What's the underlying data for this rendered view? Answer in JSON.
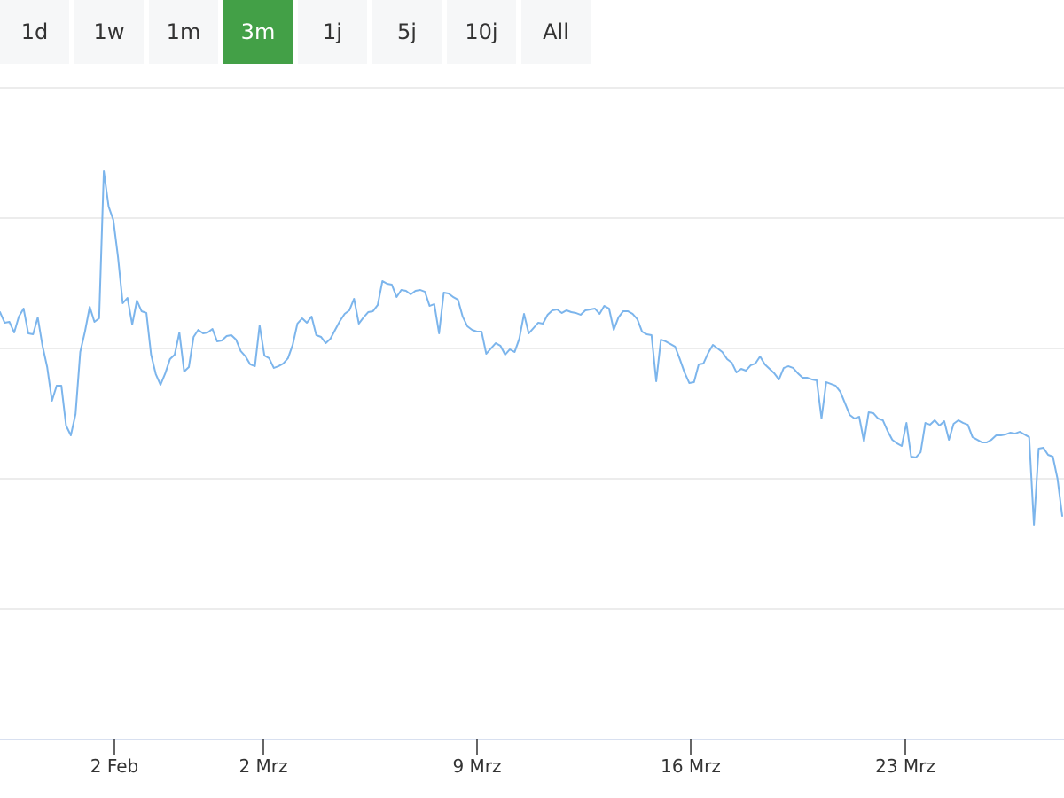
{
  "range_selector": {
    "selected": "3m",
    "items": [
      {
        "label": "1d",
        "active": false
      },
      {
        "label": "1w",
        "active": false
      },
      {
        "label": "1m",
        "active": false
      },
      {
        "label": "3m",
        "active": true
      },
      {
        "label": "1j",
        "active": false
      },
      {
        "label": "5j",
        "active": false
      },
      {
        "label": "10j",
        "active": false
      },
      {
        "label": "All",
        "active": false
      }
    ]
  },
  "colors": {
    "selected_button": "#43a047",
    "button_bg": "#f6f7f8",
    "series_line": "#7cb5ec",
    "grid": "#e6e6e6",
    "axis": "#ccd6eb"
  },
  "chart_data": {
    "type": "line",
    "title": "",
    "xlabel": "",
    "ylabel": "",
    "grid": true,
    "y_tick_labels_visible": false,
    "y_gridline_count": 5,
    "x_ticks": [
      "2 Feb",
      "2 Mrz",
      "9 Mrz",
      "16 Mrz",
      "23 Mrz"
    ],
    "series": [
      {
        "values": [
          352,
          364,
          363,
          375,
          357,
          348,
          376,
          377,
          358,
          390,
          414,
          452,
          435,
          435,
          480,
          491,
          467,
          397,
          374,
          346,
          363,
          359,
          193,
          233,
          248,
          290,
          342,
          336,
          366,
          339,
          351,
          353,
          400,
          422,
          434,
          421,
          405,
          400,
          375,
          419,
          414,
          380,
          372,
          376,
          375,
          371,
          385,
          384,
          379,
          378,
          383,
          396,
          402,
          411,
          413,
          367,
          401,
          404,
          415,
          413,
          410,
          404,
          389,
          365,
          359,
          364,
          357,
          378,
          380,
          387,
          382,
          372,
          362,
          354,
          350,
          337,
          365,
          358,
          352,
          351,
          344,
          317,
          320,
          321,
          335,
          327,
          328,
          332,
          328,
          327,
          329,
          345,
          343,
          376,
          330,
          331,
          335,
          338,
          357,
          368,
          372,
          374,
          374,
          399,
          393,
          387,
          390,
          400,
          394,
          397,
          382,
          354,
          376,
          370,
          364,
          365,
          355,
          350,
          349,
          353,
          350,
          352,
          353,
          355,
          350,
          349,
          348,
          354,
          345,
          348,
          372,
          358,
          351,
          351,
          354,
          360,
          374,
          377,
          378,
          430,
          383,
          385,
          388,
          391,
          405,
          420,
          432,
          431,
          411,
          410,
          398,
          389,
          393,
          397,
          405,
          409,
          420,
          416,
          418,
          412,
          410,
          402,
          411,
          416,
          421,
          428,
          415,
          413,
          415,
          421,
          426,
          426,
          428,
          429,
          472,
          431,
          433,
          435,
          442,
          455,
          468,
          472,
          470,
          498,
          465,
          466,
          472,
          474,
          486,
          496,
          500,
          503,
          477,
          515,
          516,
          510,
          477,
          479,
          474,
          480,
          475,
          496,
          478,
          474,
          477,
          479,
          493,
          496,
          499,
          499,
          496,
          491,
          491,
          490,
          488,
          489,
          487,
          490,
          493,
          592,
          506,
          505,
          513,
          515,
          540,
          582
        ]
      }
    ]
  }
}
